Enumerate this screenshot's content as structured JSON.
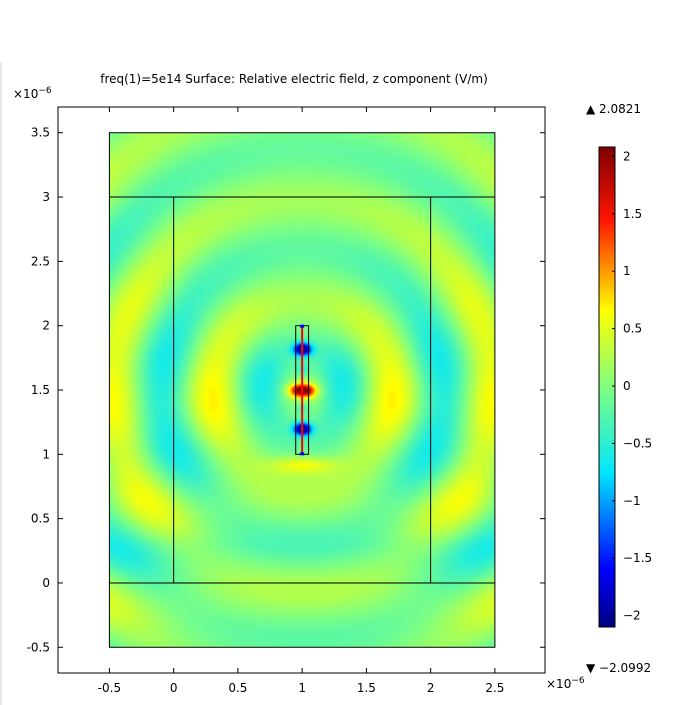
{
  "chart_data": {
    "type": "heatmap",
    "title": "freq(1)=5e14  Surface: Relative electric field, z component (V/m)",
    "x_multiplier": "×10",
    "x_multiplier_exp": "−6",
    "y_multiplier": "×10",
    "y_multiplier_exp": "−6",
    "xlim": [
      -0.9,
      2.89
    ],
    "ylim": [
      -0.7,
      3.7
    ],
    "x_ticks": [
      "-0.5",
      "0",
      "0.5",
      "1",
      "1.5",
      "2",
      "2.5"
    ],
    "x_tick_values": [
      -0.5,
      0,
      0.5,
      1,
      1.5,
      2,
      2.5
    ],
    "y_ticks": [
      "-0.5",
      "0",
      "0.5",
      "1",
      "1.5",
      "2",
      "2.5",
      "3",
      "3.5"
    ],
    "y_tick_values": [
      -0.5,
      0,
      0.5,
      1,
      1.5,
      2,
      2.5,
      3,
      3.5
    ],
    "colorbar": {
      "max_label": "▲ 2.0821",
      "min_label": "▼ −2.0992",
      "max": 2.0821,
      "min": -2.0992,
      "ticks": [
        "2",
        "1.5",
        "1",
        "0.5",
        "0",
        "−0.5",
        "−1",
        "−1.5",
        "−2"
      ],
      "tick_values": [
        2,
        1.5,
        1,
        0.5,
        0,
        -0.5,
        -1,
        -1.5,
        -2
      ],
      "colormap": "rainbow"
    },
    "geometry": {
      "outer_domain": [
        -0.5,
        2.5,
        -0.5,
        3.5
      ],
      "inner_domain": [
        0,
        2,
        0,
        3
      ],
      "antenna": [
        0.95,
        1.05,
        1.0,
        2.0
      ]
    },
    "colors": {
      "edge": "#000000",
      "antenna_line": "#ff0000",
      "antenna_ends": "#0000ff"
    }
  }
}
